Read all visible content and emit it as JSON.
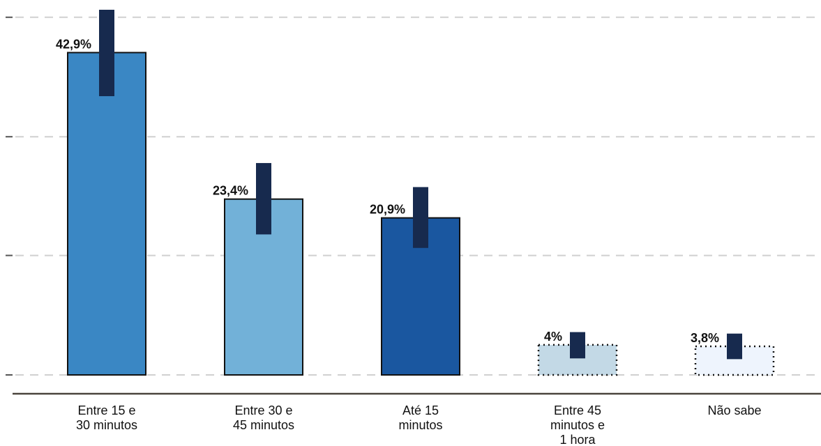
{
  "chart_data": {
    "type": "bar",
    "categories": [
      [
        "Entre 15 e",
        "30 minutos"
      ],
      [
        "Entre 30 e",
        "45 minutos"
      ],
      [
        "Até 15",
        "minutos"
      ],
      [
        "Entre 45",
        "minutos e",
        "1 hora"
      ],
      [
        "Não sabe"
      ]
    ],
    "values": [
      42.9,
      23.4,
      20.9,
      4.0,
      3.8
    ],
    "data_labels": [
      "42,9%",
      "23,4%",
      "20,9%",
      "4%",
      "3,8%"
    ],
    "error_bars": [
      {
        "low": 37.1,
        "high": 48.6
      },
      {
        "low": 18.7,
        "high": 28.2
      },
      {
        "low": 16.9,
        "high": 25.0
      },
      {
        "low": 2.2,
        "high": 5.7
      },
      {
        "low": 2.1,
        "high": 5.5
      }
    ],
    "colors": [
      "#3a87c4",
      "#72b1d8",
      "#1a57a0",
      "#c3d9e6",
      "#eef4fd"
    ],
    "bar_style": [
      "solid",
      "solid",
      "solid",
      "dotted",
      "dotted"
    ],
    "error_bar_color": "#172a4e",
    "ylim": [
      0,
      48.6
    ],
    "y_gridlines": [
      0,
      15.9,
      31.7,
      47.6
    ],
    "grid": true,
    "title": "",
    "xlabel": "",
    "ylabel": ""
  }
}
